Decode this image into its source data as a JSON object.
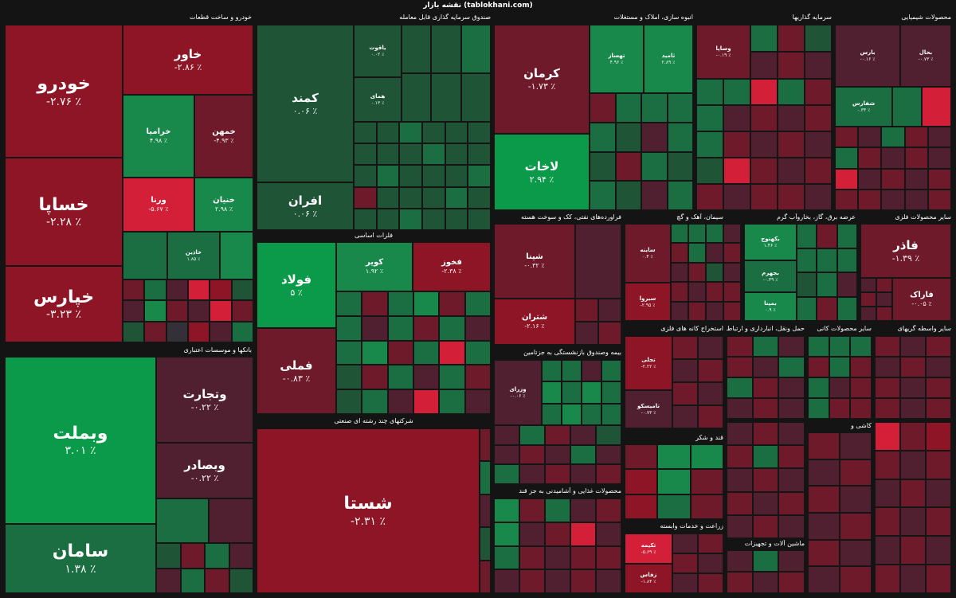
{
  "title": "نقشه بازار (tablokhani.com)",
  "sectors": {
    "khodro": "خودرو و ساخت قطعات",
    "sandogh": "صندوق سرمایه گذاری قابل معامله",
    "kashi": "انبوه سازی، املاک و مستغلات",
    "sarmaye": "سرمایه گذاریها",
    "mahsoolat_shimi": "محصولات شیمیایی",
    "felezat": "فلزات اساسی",
    "naft": "فراورده‌های نفتی، کک و سوخت هسته",
    "siman": "سیمان، آهک و گچ",
    "arzeh_bargh": "عرضه برق، گاز، بخاروآب گرم",
    "mahsoolat_felezi": "سایر محصولات فلزی",
    "banks": "بانکها و موسسات اعتباری",
    "chand_reshte": "شرکتهای چند رشته ای صنعتی",
    "bime": "بیمه وصندوق بازنشستگی به جزتامین",
    "estekhraj": "استخراج کانه های فلزی",
    "haml": "حمل ونقل، انبارداری و ارتباطات",
    "sayer_kani": "سایر محصولات کانی",
    "vaseteh": "سایر واسطه گریهای",
    "ghand": "قند و شکر",
    "ghaza": "محصولات غذایی و آشامیدنی به جز قند",
    "zeraat": "زراعت و خدمات وابسته",
    "mashin": "ماشین آلات و تجهیزات",
    "kashi2": "کاشی و"
  },
  "tiles": {
    "khodro": {
      "name": "خودرو",
      "pct": "-۲.۷۶ ٪"
    },
    "khavar": {
      "name": "خاور",
      "pct": "-۲.۸۶ ٪"
    },
    "khasapa": {
      "name": "خساپا",
      "pct": "-۲.۲۸ ٪"
    },
    "khparse": {
      "name": "خپارس",
      "pct": "-۳.۲۳ ٪"
    },
    "khramia": {
      "name": "خرامیا",
      "pct": "۴.۹۸ ٪"
    },
    "khmehan": {
      "name": "خمهن",
      "pct": "-۴.۹۳ ٪"
    },
    "vrena": {
      "name": "ورنا",
      "pct": "-۵.۶۷ ٪"
    },
    "khnian": {
      "name": "خنیان",
      "pct": "۲.۹۸ ٪"
    },
    "khchin": {
      "name": "خاذین",
      "pct": "۱.۸۵ ٪"
    },
    "kamand": {
      "name": "کمند",
      "pct": "۰.۰۶ ٪"
    },
    "afran": {
      "name": "افران",
      "pct": "۰.۰۶ ٪"
    },
    "yaghout": {
      "name": "یاقوت",
      "pct": "۰.۰۲ ٪"
    },
    "hamay": {
      "name": "همای",
      "pct": "۰.۱۳ ٪"
    },
    "kerman": {
      "name": "کرمان",
      "pct": "-۱.۷۳ ٪"
    },
    "lakhat": {
      "name": "لاخات",
      "pct": "۲.۹۴ ٪"
    },
    "tahsaz": {
      "name": "تهساز",
      "pct": "۴.۹۶ ٪"
    },
    "tamid": {
      "name": "ثامید",
      "pct": "۲.۸۹ ٪"
    },
    "vsapa": {
      "name": "وساپا",
      "pct": "-۰.۱۹ ٪"
    },
    "baran": {
      "name": "بارس",
      "pct": "-۰.۱۶ ٪"
    },
    "bahal": {
      "name": "بخال",
      "pct": "-۰.۷۳ ٪"
    },
    "shafars": {
      "name": "شفارس",
      "pct": "۰.۳۴ ٪"
    },
    "foolad": {
      "name": "فولاد",
      "pct": "۵ ٪"
    },
    "kavir": {
      "name": "کویر",
      "pct": "۱.۹۲ ٪"
    },
    "fakhouz": {
      "name": "فخوز",
      "pct": "-۲.۳۸ ٪"
    },
    "fmeli": {
      "name": "فملی",
      "pct": "-۰.۸۳ ٪"
    },
    "shanta": {
      "name": "شپنا",
      "pct": "-۰.۳۲ ٪"
    },
    "shatran": {
      "name": "شتران",
      "pct": "-۲.۱۶ ٪"
    },
    "sabik": {
      "name": "ساینه",
      "pct": "۰.۴ ٪"
    },
    "sirva": {
      "name": "سیروا",
      "pct": "-۲.۹۵ ٪"
    },
    "bakhnouj": {
      "name": "بکهنوج",
      "pct": "۱.۴۶ ٪"
    },
    "bajhram": {
      "name": "بجهرم",
      "pct": "-۰.۳۹ ٪"
    },
    "bamina": {
      "name": "بمپنا",
      "pct": "۰.۹ ٪"
    },
    "fakhar": {
      "name": "فاذر",
      "pct": "-۱.۳۹ ٪"
    },
    "farak": {
      "name": "فاراک",
      "pct": "-۰.۰۵ ٪"
    },
    "vbmelat": {
      "name": "وبملت",
      "pct": "۳.۰۱ ٪"
    },
    "vtejarat": {
      "name": "وتجارت",
      "pct": "-۰.۲۲ ٪"
    },
    "vbsader": {
      "name": "وبصادر",
      "pct": "-۰.۲۲ ٪"
    },
    "saman": {
      "name": "سامان",
      "pct": "۱.۳۸ ٪"
    },
    "shasta": {
      "name": "شستا",
      "pct": "-۲.۳۱ ٪"
    },
    "vrazi": {
      "name": "وزرای",
      "pct": "-۰.۰۶ ٪"
    },
    "tajli": {
      "name": "تجلی",
      "pct": "-۲.۲۲ ٪"
    },
    "tamisko": {
      "name": "تامیسکو",
      "pct": "-۰.۷۳ ٪"
    },
    "nik": {
      "name": "تکیمه",
      "pct": "-۵.۶۹ ٪"
    },
    "zaeil": {
      "name": "زفاس",
      "pct": "-۱.۸۴ ٪"
    }
  }
}
